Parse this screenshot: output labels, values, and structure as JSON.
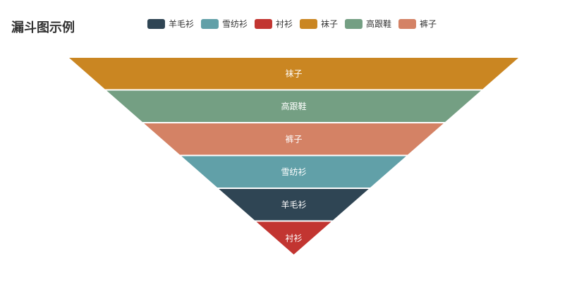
{
  "title": {
    "text": "漏斗图示例"
  },
  "legend": {
    "items": [
      {
        "id": "wool-sweater",
        "label": "羊毛衫",
        "color": "#2f4554"
      },
      {
        "id": "chiffon-shirt",
        "label": "雪纺衫",
        "color": "#61a0a8"
      },
      {
        "id": "shirt",
        "label": "衬衫",
        "color": "#c23531"
      },
      {
        "id": "socks",
        "label": "袜子",
        "color": "#ca8622"
      },
      {
        "id": "high-heels",
        "label": "高跟鞋",
        "color": "#749f83"
      },
      {
        "id": "pants",
        "label": "裤子",
        "color": "#d48265"
      }
    ]
  },
  "chart_data": {
    "type": "funnel",
    "title": "漏斗图示例",
    "sort": "ascending",
    "shape": "inverted-pyramid",
    "label_position": "inside",
    "label_color": "#ffffff",
    "background": "#ffffff",
    "legend_position": "top-center",
    "segments": [
      {
        "id": "socks",
        "name": "袜子",
        "color": "#ca8622",
        "relative_width_percent": 100
      },
      {
        "id": "high-heels",
        "name": "高跟鞋",
        "color": "#749f83",
        "relative_width_percent": 83.3
      },
      {
        "id": "pants",
        "name": "裤子",
        "color": "#d48265",
        "relative_width_percent": 66.7
      },
      {
        "id": "chiffon-shirt",
        "name": "雪纺衫",
        "color": "#61a0a8",
        "relative_width_percent": 50
      },
      {
        "id": "wool-sweater",
        "name": "羊毛衫",
        "color": "#2f4554",
        "relative_width_percent": 33.3
      },
      {
        "id": "shirt",
        "name": "衬衫",
        "color": "#c23531",
        "relative_width_percent": 16.7
      }
    ]
  }
}
